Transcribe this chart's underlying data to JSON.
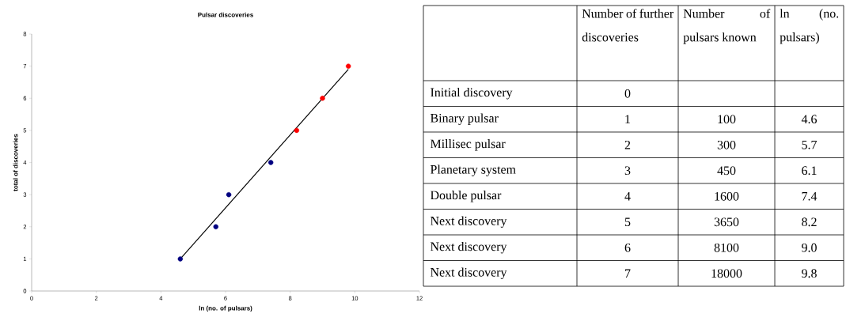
{
  "chart_data": [
    {
      "type": "scatter",
      "title": "Pulsar discoveries",
      "xlabel": "ln (no. of  pulsars)",
      "ylabel": "total of discoveries",
      "xlim": [
        0,
        12
      ],
      "xticks": [
        0,
        2,
        4,
        6,
        8,
        10,
        12
      ],
      "ylim": [
        0,
        8
      ],
      "yticks": [
        0,
        1,
        2,
        3,
        4,
        5,
        6,
        7,
        8
      ],
      "marker": "circle",
      "series": [
        {
          "color": "#000080",
          "x": [
            4.6,
            5.7,
            6.1,
            7.4
          ],
          "values": [
            1,
            2,
            3,
            4
          ]
        },
        {
          "color": "#ff0000",
          "x": [
            8.2,
            9.0,
            9.8
          ],
          "values": [
            5,
            6,
            7
          ]
        },
        {
          "type": "line",
          "marker": "none",
          "color": "#000000",
          "x": [
            4.6,
            9.8
          ],
          "values": [
            1,
            6.9
          ]
        }
      ]
    },
    {
      "type": "other",
      "data_labels": true,
      "categories": [
        "Initial discovery",
        "Binary pulsar",
        "Millisec pulsar",
        "Planetary system",
        "Double pulsar",
        "Next discovery",
        "Next discovery",
        "Next discovery"
      ],
      "series": [
        {
          "name": "Number of further discoveries",
          "values": [
            0,
            1,
            2,
            3,
            4,
            5,
            6,
            7
          ]
        },
        {
          "name": "Number of pulsars known",
          "values": [
            null,
            100,
            300,
            450,
            1600,
            3650,
            8100,
            18000
          ]
        },
        {
          "name": "ln (no. pulsars)",
          "values": [
            null,
            4.6,
            5.7,
            6.1,
            7.4,
            8.2,
            9.0,
            9.8
          ],
          "value_labels": [
            null,
            "4.6",
            "5.7",
            "6.1",
            "7.4",
            "8.2",
            "9.0",
            "9.8"
          ]
        }
      ]
    }
  ]
}
